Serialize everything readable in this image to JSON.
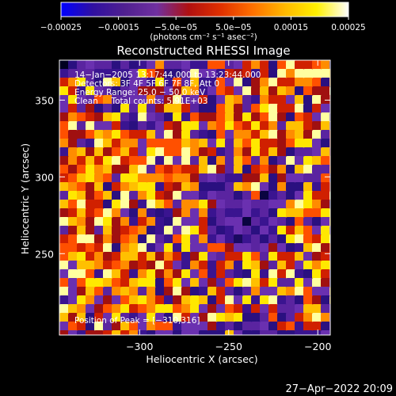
{
  "chart_data": {
    "type": "heatmap",
    "title": "Reconstructed RHESSI Image",
    "xlabel": "Heliocentric X (arcsec)",
    "ylabel": "Heliocentric Y (arcsec)",
    "xlim": [
      -345,
      -193
    ],
    "ylim": [
      197,
      376
    ],
    "x_ticks": [
      -300,
      -250,
      -200
    ],
    "x_tick_labels": [
      "−300",
      "−250",
      "−200"
    ],
    "y_ticks": [
      250,
      300,
      350
    ],
    "y_tick_labels": [
      "250",
      "300",
      "350"
    ],
    "colorbar": {
      "range": [
        -0.00025,
        0.00025
      ],
      "ticks": [
        -0.00025,
        -0.00015,
        -5e-05,
        5e-05,
        0.00015,
        0.00025
      ],
      "tick_labels": [
        "−0.00025",
        "−0.00015",
        "−5.0e−05",
        "5.0e−05",
        "0.00015",
        "0.00025"
      ],
      "unit": "(photons cm⁻² s⁻¹ asec⁻²)",
      "colormap": [
        "#0000ff",
        "#3010a0",
        "#502090",
        "#7030a0",
        "#b01010",
        "#e03000",
        "#ff7000",
        "#ffb800",
        "#fff000",
        "#ffffff"
      ]
    },
    "annotations": [
      "14−Jan−2005 13:17:44.000 to 13:23:44.000",
      "Detectors: 3F 4F 5F 6F 7F 8F, Att 0",
      "Energy Range: 25.0 − 50.0 keV",
      "Clean     Total counts: 5.91E+03"
    ],
    "peak_label": "Position of Peak = [−310,316]",
    "peak": [
      -310,
      316
    ],
    "timestamp": "27−Apr−2022 20:09",
    "grid": false,
    "legend": "colorbar-top"
  }
}
